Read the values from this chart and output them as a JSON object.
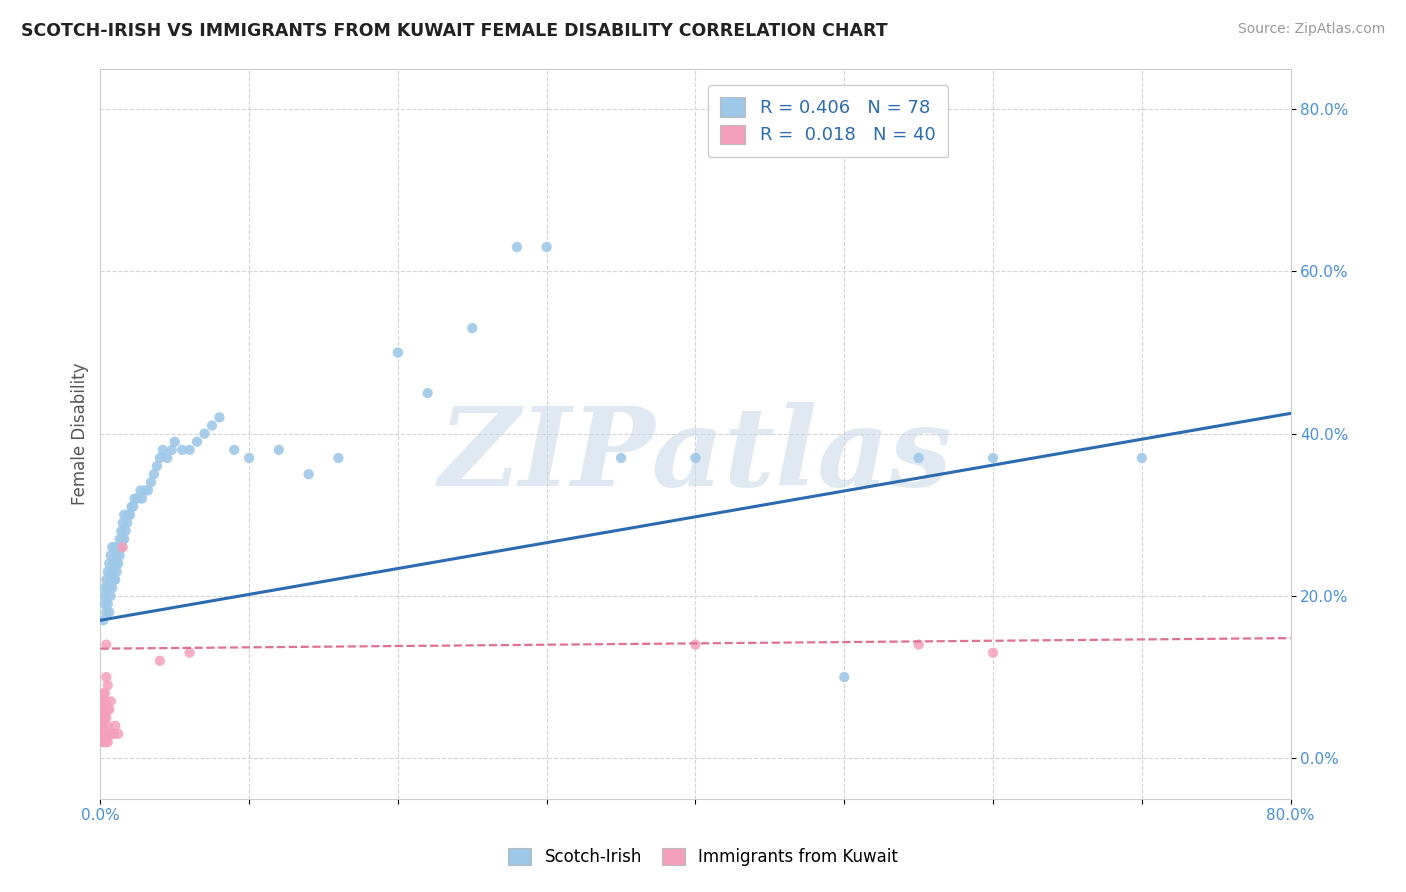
{
  "title": "SCOTCH-IRISH VS IMMIGRANTS FROM KUWAIT FEMALE DISABILITY CORRELATION CHART",
  "source": "Source: ZipAtlas.com",
  "ylabel": "Female Disability",
  "watermark": "ZIPatlas",
  "si_legend_label": "R = 0.406   N = 78",
  "kw_legend_label": "R =  0.018   N = 40",
  "si_scatter_color": "#9ec8e8",
  "kw_scatter_color": "#f4a0bc",
  "si_line_color": "#2b6cb0",
  "kw_line_color": "#e07090",
  "text_color_blue": "#2b6cb0",
  "tick_color": "#4a90d9",
  "grid_color": "#d0d0d0",
  "background_color": "#ffffff",
  "xmin": 0.0,
  "xmax": 0.8,
  "ymin": -0.05,
  "ymax": 0.85,
  "yticks": [
    0.0,
    0.2,
    0.4,
    0.6,
    0.8
  ],
  "scotch_irish_x": [
    0.002,
    0.003,
    0.003,
    0.003,
    0.004,
    0.004,
    0.004,
    0.005,
    0.005,
    0.005,
    0.006,
    0.006,
    0.006,
    0.007,
    0.007,
    0.007,
    0.008,
    0.008,
    0.008,
    0.009,
    0.009,
    0.01,
    0.01,
    0.01,
    0.011,
    0.011,
    0.012,
    0.012,
    0.013,
    0.013,
    0.014,
    0.014,
    0.015,
    0.015,
    0.016,
    0.016,
    0.017,
    0.018,
    0.019,
    0.02,
    0.021,
    0.022,
    0.023,
    0.025,
    0.027,
    0.028,
    0.03,
    0.032,
    0.034,
    0.036,
    0.038,
    0.04,
    0.042,
    0.045,
    0.048,
    0.05,
    0.055,
    0.06,
    0.065,
    0.07,
    0.075,
    0.08,
    0.09,
    0.1,
    0.12,
    0.14,
    0.16,
    0.2,
    0.22,
    0.25,
    0.28,
    0.3,
    0.35,
    0.4,
    0.5,
    0.55,
    0.6,
    0.7
  ],
  "scotch_irish_y": [
    0.17,
    0.19,
    0.2,
    0.21,
    0.18,
    0.2,
    0.22,
    0.19,
    0.21,
    0.23,
    0.18,
    0.21,
    0.24,
    0.2,
    0.22,
    0.25,
    0.21,
    0.23,
    0.26,
    0.22,
    0.24,
    0.22,
    0.24,
    0.26,
    0.23,
    0.25,
    0.24,
    0.26,
    0.25,
    0.27,
    0.26,
    0.28,
    0.27,
    0.29,
    0.27,
    0.3,
    0.28,
    0.29,
    0.3,
    0.3,
    0.31,
    0.31,
    0.32,
    0.32,
    0.33,
    0.32,
    0.33,
    0.33,
    0.34,
    0.35,
    0.36,
    0.37,
    0.38,
    0.37,
    0.38,
    0.39,
    0.38,
    0.38,
    0.39,
    0.4,
    0.41,
    0.42,
    0.38,
    0.37,
    0.38,
    0.35,
    0.37,
    0.5,
    0.45,
    0.53,
    0.63,
    0.63,
    0.37,
    0.37,
    0.1,
    0.37,
    0.37,
    0.37
  ],
  "kuwait_x": [
    0.001,
    0.001,
    0.001,
    0.001,
    0.001,
    0.002,
    0.002,
    0.002,
    0.002,
    0.002,
    0.002,
    0.003,
    0.003,
    0.003,
    0.003,
    0.003,
    0.004,
    0.004,
    0.004,
    0.004,
    0.004,
    0.004,
    0.005,
    0.005,
    0.005,
    0.005,
    0.006,
    0.006,
    0.007,
    0.007,
    0.008,
    0.009,
    0.01,
    0.012,
    0.015,
    0.04,
    0.06,
    0.4,
    0.55,
    0.6
  ],
  "kuwait_y": [
    0.02,
    0.03,
    0.04,
    0.05,
    0.06,
    0.02,
    0.03,
    0.04,
    0.05,
    0.07,
    0.08,
    0.02,
    0.03,
    0.05,
    0.06,
    0.08,
    0.02,
    0.03,
    0.05,
    0.07,
    0.1,
    0.14,
    0.02,
    0.04,
    0.06,
    0.09,
    0.03,
    0.06,
    0.03,
    0.07,
    0.03,
    0.03,
    0.04,
    0.03,
    0.26,
    0.12,
    0.13,
    0.14,
    0.14,
    0.13
  ],
  "si_trend_x0": 0.0,
  "si_trend_y0": 0.17,
  "si_trend_x1": 0.8,
  "si_trend_y1": 0.425,
  "kw_trend_x0": 0.0,
  "kw_trend_y0": 0.135,
  "kw_trend_x1": 0.8,
  "kw_trend_y1": 0.148
}
